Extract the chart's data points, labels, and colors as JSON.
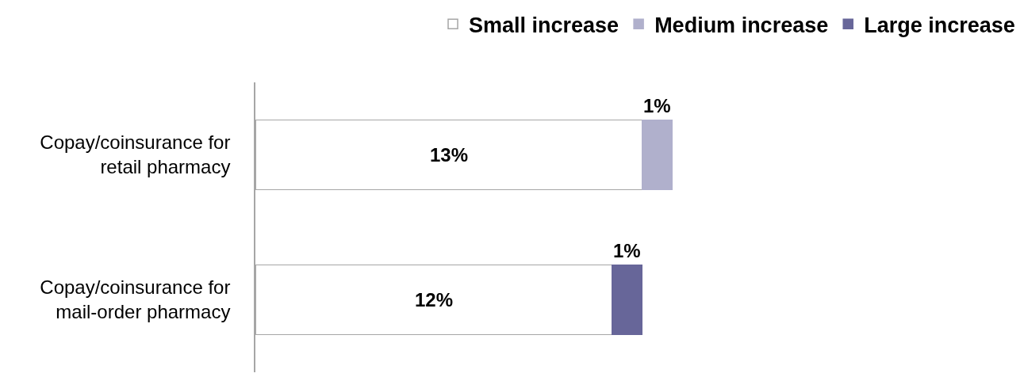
{
  "chart_data": {
    "type": "bar",
    "orientation": "horizontal",
    "stacked": true,
    "categories": [
      "Copay/coinsurance for retail pharmacy",
      "Copay/coinsurance for mail-order pharmacy"
    ],
    "series": [
      {
        "name": "Small increase",
        "color": "#ffffff",
        "values": [
          13,
          12
        ],
        "value_labels": [
          "13%",
          "12%"
        ]
      },
      {
        "name": "Medium increase",
        "color": "#b0b0cc",
        "values": [
          1,
          null
        ],
        "value_labels": [
          "1%",
          null
        ]
      },
      {
        "name": "Large increase",
        "color": "#676699",
        "values": [
          null,
          1
        ],
        "value_labels": [
          null,
          "1%"
        ]
      }
    ],
    "legend": "top right"
  }
}
